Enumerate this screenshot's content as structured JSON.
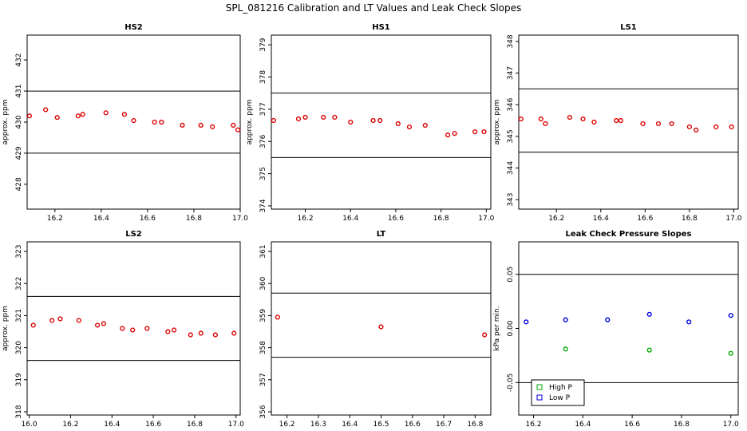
{
  "title": "SPL_081216  Calibration and LT Values and Leak Check Slopes",
  "chart_data": [
    {
      "type": "scatter",
      "title": "HS2",
      "ylabel": "approx. ppm",
      "xlim": [
        16.08,
        17.0
      ],
      "ylim": [
        427.2,
        432.8
      ],
      "xticks": [
        16.2,
        16.4,
        16.6,
        16.8,
        17.0
      ],
      "xtick_labels": [
        "16.2",
        "16.4",
        "16.6",
        "16.8",
        "17.0"
      ],
      "yticks": [
        428,
        429,
        430,
        431,
        432
      ],
      "ytick_labels": [
        "428",
        "429",
        "430",
        "431",
        "432"
      ],
      "hlines": [
        431,
        429
      ],
      "series": [
        {
          "color": "#dd0000",
          "x": [
            16.09,
            16.16,
            16.21,
            16.3,
            16.32,
            16.42,
            16.5,
            16.54,
            16.63,
            16.66,
            16.75,
            16.83,
            16.88,
            16.97,
            16.99
          ],
          "y": [
            430.2,
            430.4,
            430.15,
            430.2,
            430.25,
            430.3,
            430.25,
            430.05,
            430.0,
            430.0,
            429.9,
            429.9,
            429.85,
            429.9,
            429.75
          ]
        }
      ]
    },
    {
      "type": "scatter",
      "title": "HS1",
      "ylabel": "approx. ppm",
      "xlim": [
        16.05,
        17.02
      ],
      "ylim": [
        373.9,
        379.3
      ],
      "xticks": [
        16.2,
        16.4,
        16.6,
        16.8,
        17.0
      ],
      "xtick_labels": [
        "16.2",
        "16.4",
        "16.6",
        "16.8",
        "17.0"
      ],
      "yticks": [
        374,
        375,
        376,
        377,
        378,
        379
      ],
      "ytick_labels": [
        "374",
        "375",
        "376",
        "377",
        "378",
        "379"
      ],
      "hlines": [
        377.5,
        375.5
      ],
      "series": [
        {
          "color": "#dd0000",
          "x": [
            16.06,
            16.17,
            16.2,
            16.28,
            16.33,
            16.4,
            16.5,
            16.53,
            16.61,
            16.66,
            16.73,
            16.83,
            16.86,
            16.95,
            16.99
          ],
          "y": [
            376.65,
            376.7,
            376.75,
            376.75,
            376.75,
            376.6,
            376.65,
            376.65,
            376.55,
            376.45,
            376.5,
            376.2,
            376.25,
            376.3,
            376.3
          ]
        }
      ]
    },
    {
      "type": "scatter",
      "title": "LS1",
      "ylabel": "approx. ppm",
      "xlim": [
        16.03,
        17.02
      ],
      "ylim": [
        342.7,
        348.2
      ],
      "xticks": [
        16.2,
        16.4,
        16.6,
        16.8,
        17.0
      ],
      "xtick_labels": [
        "16.2",
        "16.4",
        "16.6",
        "16.8",
        "17.0"
      ],
      "yticks": [
        343,
        344,
        345,
        346,
        347,
        348
      ],
      "ytick_labels": [
        "343",
        "344",
        "345",
        "346",
        "347",
        "348"
      ],
      "hlines": [
        346.5,
        344.5
      ],
      "series": [
        {
          "color": "#dd0000",
          "x": [
            16.04,
            16.13,
            16.15,
            16.26,
            16.32,
            16.37,
            16.47,
            16.49,
            16.59,
            16.66,
            16.72,
            16.8,
            16.83,
            16.92,
            16.99
          ],
          "y": [
            345.55,
            345.55,
            345.4,
            345.6,
            345.55,
            345.45,
            345.5,
            345.5,
            345.4,
            345.4,
            345.4,
            345.3,
            345.2,
            345.3,
            345.3
          ]
        }
      ]
    },
    {
      "type": "scatter",
      "title": "LS2",
      "ylabel": "approx. ppm",
      "xlim": [
        15.99,
        17.02
      ],
      "ylim": [
        317.9,
        323.3
      ],
      "xticks": [
        16.0,
        16.2,
        16.4,
        16.6,
        16.8,
        17.0
      ],
      "xtick_labels": [
        "16.0",
        "16.2",
        "16.4",
        "16.6",
        "16.8",
        "17.0"
      ],
      "yticks": [
        318,
        319,
        320,
        321,
        322,
        323
      ],
      "ytick_labels": [
        "318",
        "319",
        "320",
        "321",
        "322",
        "323"
      ],
      "hlines": [
        321.6,
        319.6
      ],
      "series": [
        {
          "color": "#dd0000",
          "x": [
            16.02,
            16.11,
            16.15,
            16.24,
            16.33,
            16.36,
            16.45,
            16.5,
            16.57,
            16.67,
            16.7,
            16.78,
            16.83,
            16.9,
            16.99
          ],
          "y": [
            320.7,
            320.85,
            320.9,
            320.85,
            320.7,
            320.75,
            320.6,
            320.55,
            320.6,
            320.5,
            320.55,
            320.4,
            320.45,
            320.4,
            320.45
          ]
        }
      ]
    },
    {
      "type": "scatter",
      "title": "LT",
      "ylabel": "",
      "xlim": [
        16.15,
        16.85
      ],
      "ylim": [
        355.9,
        361.3
      ],
      "xticks": [
        16.2,
        16.3,
        16.4,
        16.5,
        16.6,
        16.7,
        16.8
      ],
      "xtick_labels": [
        "16.2",
        "16.3",
        "16.4",
        "16.5",
        "16.6",
        "16.7",
        "16.8"
      ],
      "yticks": [
        356,
        357,
        358,
        359,
        360,
        361
      ],
      "ytick_labels": [
        "356",
        "357",
        "358",
        "359",
        "360",
        "361"
      ],
      "hlines": [
        359.7,
        357.7
      ],
      "series": [
        {
          "color": "#dd0000",
          "x": [
            16.17,
            16.5,
            16.83
          ],
          "y": [
            358.95,
            358.65,
            358.4
          ]
        }
      ]
    },
    {
      "type": "scatter",
      "title": "Leak Check Pressure Slopes",
      "ylabel": "kPa per min.",
      "xlim": [
        16.14,
        17.03
      ],
      "ylim": [
        -0.08,
        0.08
      ],
      "xticks": [
        16.2,
        16.4,
        16.6,
        16.8,
        17.0
      ],
      "xtick_labels": [
        "16.2",
        "16.4",
        "16.6",
        "16.8",
        "17.0"
      ],
      "yticks": [
        -0.05,
        0.0,
        0.05
      ],
      "ytick_labels": [
        "-0.05",
        "0.00",
        "0.05"
      ],
      "hlines": [
        0.05,
        -0.05
      ],
      "legend": "bottom-left",
      "series": [
        {
          "name": "High P",
          "color": "#00aa00",
          "x": [
            16.33,
            16.67,
            17.0
          ],
          "y": [
            -0.019,
            -0.02,
            -0.023
          ]
        },
        {
          "name": "Low P",
          "color": "#0000dd",
          "x": [
            16.17,
            16.33,
            16.5,
            16.67,
            16.83,
            17.0
          ],
          "y": [
            0.006,
            0.008,
            0.008,
            0.013,
            0.006,
            0.012
          ]
        }
      ]
    }
  ]
}
